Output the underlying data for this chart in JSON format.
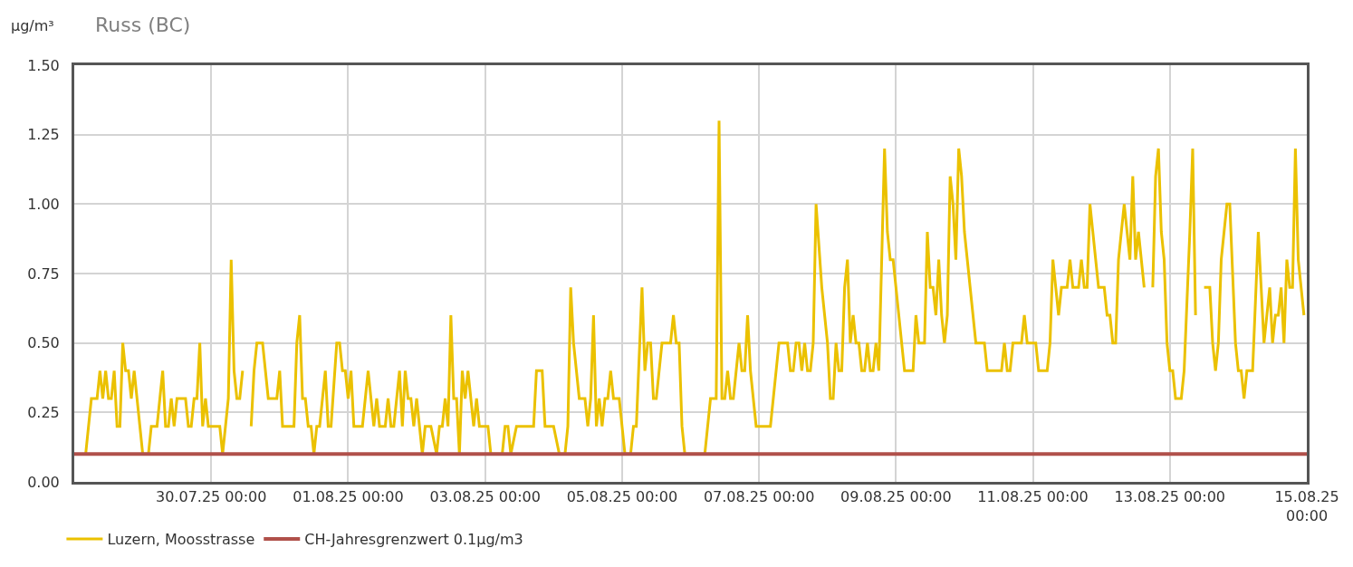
{
  "chart_data": {
    "type": "line",
    "title": "Russ (BC)",
    "ylabel": "µg/m³",
    "xlim": [
      "--07-28T00:00",
      "--08-15T00:00"
    ],
    "xticks": [
      {
        "value": "--07-30T00:00",
        "label": "30.07.25 00:00"
      },
      {
        "value": "--08-01T00:00",
        "label": "01.08.25 00:00"
      },
      {
        "value": "--08-03T00:00",
        "label": "03.08.25 00:00"
      },
      {
        "value": "--08-05T00:00",
        "label": "05.08.25 00:00"
      },
      {
        "value": "--08-07T00:00",
        "label": "07.08.25 00:00"
      },
      {
        "value": "--08-09T00:00",
        "label": "09.08.25 00:00"
      },
      {
        "value": "--08-11T00:00",
        "label": "11.08.25 00:00"
      },
      {
        "value": "--08-13T00:00",
        "label": "13.08.25 00:00"
      },
      {
        "value": "--08-15T00:00",
        "label": "15.08.25 00:00"
      }
    ],
    "ylim": [
      0,
      1.5
    ],
    "yticks": [
      {
        "value": 0,
        "label": "0.00"
      },
      {
        "value": 0.25,
        "label": "0.25"
      },
      {
        "value": 0.5,
        "label": "0.50"
      },
      {
        "value": 0.75,
        "label": "0.75"
      },
      {
        "value": 1,
        "label": "1.00"
      },
      {
        "value": 1.25,
        "label": "1.25"
      },
      {
        "value": 1.5,
        "label": "1.50"
      }
    ],
    "grid": true,
    "legend": "bottom left",
    "marker": "none",
    "line_style": "solid",
    "ref_lines": [
      {
        "axis": "y",
        "value": 0.1,
        "label": "CH-Jahresgrenzwert 0.1µg/m3",
        "color": "#b0504a",
        "line_style": "solid"
      }
    ],
    "series": [
      {
        "name": "Luzern, Moosstrasse",
        "color": "#ebc100",
        "x": [
          "--07-28T04:00",
          "--07-28T06:00",
          "--07-28T08:00",
          "--07-28T09:00",
          "--07-28T10:00",
          "--07-28T11:00",
          "--07-28T12:00",
          "--07-28T13:00",
          "--07-28T14:00",
          "--07-28T15:00",
          "--07-28T16:00",
          "--07-28T17:00",
          "--07-28T18:00",
          "--07-28T19:00",
          "--07-28T20:00",
          "--07-28T21:00",
          "--07-29T00:00",
          "--07-29T02:00",
          "--07-29T03:00",
          "--07-29T05:00",
          "--07-29T07:00",
          "--07-29T08:00",
          "--07-29T09:00",
          "--07-29T10:00",
          "--07-29T11:00",
          "--07-29T12:00",
          "--07-29T15:00",
          "--07-29T16:00",
          "--07-29T17:00",
          "--07-29T18:00",
          "--07-29T19:00",
          "--07-29T20:00",
          "--07-29T21:00",
          "--07-29T22:00",
          "--07-29T23:00",
          "--07-30T03:00",
          "--07-30T04:00",
          "--07-30T06:00",
          "--07-30T07:00",
          "--07-30T08:00",
          "--07-30T09:00",
          "--07-30T10:00",
          "--07-30T11:00",
          "--07-30T12:00",
          "--07-30T14:00",
          "--07-30T15:00",
          "--07-30T16:00",
          "--07-30T18:00",
          "--07-30T20:00",
          "--07-30T23:00",
          "--07-31T00:00",
          "--07-31T01:00",
          "--07-31T05:00",
          "--07-31T06:00",
          "--07-31T07:00",
          "--07-31T08:00",
          "--07-31T09:00",
          "--07-31T10:00",
          "--07-31T11:00",
          "--07-31T12:00",
          "--07-31T13:00",
          "--07-31T14:00",
          "--07-31T16:00",
          "--07-31T17:00",
          "--07-31T18:00",
          "--07-31T20:00",
          "--07-31T21:00",
          "--07-31T22:00",
          "--07-31T23:00",
          "--08-01T00:00",
          "--08-01T01:00",
          "--08-01T02:00",
          "--08-01T05:00",
          "--08-01T07:00",
          "--08-01T09:00",
          "--08-01T10:00",
          "--08-01T11:00",
          "--08-01T13:00",
          "--08-01T14:00",
          "--08-01T15:00",
          "--08-01T16:00",
          "--08-01T18:00",
          "--08-01T19:00",
          "--08-01T20:00",
          "--08-01T21:00",
          "--08-01T22:00",
          "--08-01T23:00",
          "--08-02T00:00",
          "--08-02T01:00",
          "--08-02T02:00",
          "--08-02T03:00",
          "--08-02T05:00",
          "--08-02T07:00",
          "--08-02T08:00",
          "--08-02T09:00",
          "--08-02T10:00",
          "--08-02T11:00",
          "--08-02T12:00",
          "--08-02T13:00",
          "--08-02T14:00",
          "--08-02T15:00",
          "--08-02T16:00",
          "--08-02T17:00",
          "--08-02T18:00",
          "--08-02T19:00",
          "--08-02T20:00",
          "--08-02T21:00",
          "--08-02T22:00",
          "--08-03T01:00",
          "--08-03T02:00",
          "--08-03T06:00",
          "--08-03T07:00",
          "--08-03T08:00",
          "--08-03T09:00",
          "--08-03T11:00",
          "--08-03T17:00",
          "--08-03T18:00",
          "--08-03T20:00",
          "--08-03T21:00",
          "--08-04T00:00",
          "--08-04T02:00",
          "--08-04T04:00",
          "--08-04T05:00",
          "--08-04T06:00",
          "--08-04T07:00",
          "--08-04T09:00",
          "--08-04T11:00",
          "--08-04T12:00",
          "--08-04T13:00",
          "--08-04T14:00",
          "--08-04T15:00",
          "--08-04T16:00",
          "--08-04T17:00",
          "--08-04T18:00",
          "--08-04T19:00",
          "--08-04T20:00",
          "--08-04T21:00",
          "--08-04T23:00",
          "--08-05T01:00",
          "--08-05T03:00",
          "--08-05T04:00",
          "--08-05T05:00",
          "--08-05T07:00",
          "--08-05T08:00",
          "--08-05T09:00",
          "--08-05T10:00",
          "--08-05T11:00",
          "--08-05T12:00",
          "--08-05T14:00",
          "--08-05T17:00",
          "--08-05T18:00",
          "--08-05T19:00",
          "--08-05T20:00",
          "--08-05T21:00",
          "--08-05T22:00",
          "--08-06T05:00",
          "--08-06T07:00",
          "--08-06T09:00",
          "--08-06T10:00",
          "--08-06T11:00",
          "--08-06T12:00",
          "--08-06T13:00",
          "--08-06T14:00",
          "--08-06T15:00",
          "--08-06T17:00",
          "--08-06T18:00",
          "--08-06T19:00",
          "--08-06T20:00",
          "--08-06T21:00",
          "--08-06T23:00",
          "--08-07T04:00",
          "--08-07T07:00",
          "--08-07T10:00",
          "--08-07T11:00",
          "--08-07T12:00",
          "--08-07T13:00",
          "--08-07T14:00",
          "--08-07T15:00",
          "--08-07T16:00",
          "--08-07T17:00",
          "--08-07T18:00",
          "--08-07T19:00",
          "--08-07T20:00",
          "--08-07T22:00",
          "--08-08T00:00",
          "--08-08T01:00",
          "--08-08T02:00",
          "--08-08T03:00",
          "--08-08T04:00",
          "--08-08T05:00",
          "--08-08T06:00",
          "--08-08T07:00",
          "--08-08T08:00",
          "--08-08T09:00",
          "--08-08T10:00",
          "--08-08T11:00",
          "--08-08T12:00",
          "--08-08T13:00",
          "--08-08T14:00",
          "--08-08T15:00",
          "--08-08T16:00",
          "--08-08T17:00",
          "--08-08T18:00",
          "--08-08T19:00",
          "--08-08T20:00",
          "--08-08T21:00",
          "--08-08T22:00",
          "--08-08T23:00",
          "--08-09T03:00",
          "--08-09T06:00",
          "--08-09T07:00",
          "--08-09T08:00",
          "--08-09T10:00",
          "--08-09T11:00",
          "--08-09T12:00",
          "--08-09T13:00",
          "--08-09T14:00",
          "--08-09T15:00",
          "--08-09T16:00",
          "--08-09T17:00",
          "--08-09T18:00",
          "--08-09T19:00",
          "--08-09T20:00",
          "--08-09T21:00",
          "--08-09T22:00",
          "--08-09T23:00",
          "--08-10T00:00",
          "--08-10T04:00",
          "--08-10T07:00",
          "--08-10T08:00",
          "--08-10T13:00",
          "--08-10T14:00",
          "--08-10T15:00",
          "--08-10T16:00",
          "--08-10T17:00",
          "--08-10T20:00",
          "--08-10T21:00",
          "--08-10T22:00",
          "--08-11T01:00",
          "--08-11T02:00",
          "--08-11T05:00",
          "--08-11T06:00",
          "--08-11T07:00",
          "--08-11T08:00",
          "--08-11T09:00",
          "--08-11T10:00",
          "--08-11T12:00",
          "--08-11T13:00",
          "--08-11T14:00",
          "--08-11T16:00",
          "--08-11T17:00",
          "--08-11T18:00",
          "--08-11T19:00",
          "--08-11T20:00",
          "--08-11T23:00",
          "--08-12T01:00",
          "--08-12T02:00",
          "--08-12T03:00",
          "--08-12T04:00",
          "--08-12T05:00",
          "--08-12T06:00",
          "--08-12T08:00",
          "--08-12T09:00",
          "--08-12T10:00",
          "--08-12T11:00",
          "--08-12T12:00",
          "--08-12T13:00",
          "--08-12T15:00",
          "--08-12T16:00",
          "--08-12T18:00",
          "--08-12T19:00",
          "--08-12T20:00",
          "--08-12T21:00",
          "--08-12T22:00",
          "--08-12T23:00",
          "--08-13T00:00",
          "--08-13T01:00",
          "--08-13T02:00",
          "--08-13T04:00",
          "--08-13T05:00",
          "--08-13T07:00",
          "--08-13T08:00",
          "--08-13T09:00",
          "--08-13T10:00",
          "--08-13T12:00",
          "--08-13T14:00",
          "--08-13T15:00",
          "--08-13T16:00",
          "--08-13T17:00",
          "--08-13T18:00",
          "--08-13T20:00",
          "--08-13T21:00",
          "--08-13T23:00",
          "--08-14T00:00",
          "--08-14T01:00",
          "--08-14T02:00",
          "--08-14T03:00",
          "--08-14T05:00",
          "--08-14T07:00",
          "--08-14T08:00",
          "--08-14T09:00",
          "--08-14T11:00",
          "--08-14T12:00",
          "--08-14T13:00",
          "--08-14T14:00",
          "--08-14T15:00",
          "--08-14T16:00",
          "--08-14T17:00",
          "--08-14T18:00",
          "--08-14T19:00",
          "--08-14T20:00",
          "--08-14T21:00",
          "--08-14T23:00"
        ],
        "values": [
          0.1,
          0.3,
          0.3,
          0.4,
          0.3,
          0.4,
          0.3,
          0.3,
          0.4,
          0.2,
          0.2,
          0.5,
          0.4,
          0.4,
          0.3,
          0.4,
          0.1,
          0.1,
          0.2,
          0.2,
          0.4,
          0.2,
          0.2,
          0.3,
          0.2,
          0.3,
          0.3,
          0.2,
          0.2,
          0.3,
          0.3,
          0.5,
          0.2,
          0.3,
          0.2,
          0.2,
          0.1,
          0.3,
          0.8,
          0.4,
          0.3,
          0.3,
          0.4,
          null,
          0.2,
          0.4,
          0.5,
          0.5,
          0.3,
          0.3,
          0.4,
          0.2,
          0.2,
          0.5,
          0.6,
          0.3,
          0.3,
          0.2,
          0.2,
          0.1,
          0.2,
          0.2,
          0.4,
          0.2,
          0.2,
          0.5,
          0.5,
          0.4,
          0.4,
          0.3,
          0.4,
          0.2,
          0.2,
          0.4,
          0.2,
          0.3,
          0.2,
          0.2,
          0.3,
          0.2,
          0.2,
          0.4,
          0.2,
          0.4,
          0.3,
          0.3,
          0.2,
          0.3,
          0.2,
          0.1,
          0.2,
          0.2,
          0.1,
          0.2,
          0.2,
          0.3,
          0.2,
          0.6,
          0.3,
          0.3,
          0.1,
          0.4,
          0.3,
          0.4,
          0.3,
          0.2,
          0.3,
          0.2,
          0.2,
          0.1,
          0.1,
          0.2,
          0.2,
          0.1,
          0.2,
          0.2,
          0.4,
          0.4,
          0.2,
          0.2,
          0.1,
          0.1,
          0.2,
          0.7,
          0.5,
          0.3,
          0.3,
          0.2,
          0.3,
          0.6,
          0.2,
          0.3,
          0.2,
          0.3,
          0.3,
          0.4,
          0.3,
          0.3,
          0.1,
          0.1,
          0.2,
          0.2,
          0.7,
          0.4,
          0.5,
          0.5,
          0.3,
          0.3,
          0.5,
          0.5,
          0.6,
          0.5,
          0.5,
          0.2,
          0.1,
          0.1,
          0.3,
          0.3,
          1.3,
          0.3,
          0.3,
          0.4,
          0.3,
          0.3,
          0.5,
          0.4,
          0.4,
          0.6,
          0.4,
          0.2,
          0.2,
          0.5,
          0.5,
          0.4,
          0.4,
          0.5,
          0.5,
          0.4,
          0.5,
          0.4,
          0.4,
          0.5,
          1.0,
          0.7,
          0.5,
          0.3,
          0.3,
          0.5,
          0.4,
          0.4,
          0.7,
          0.8,
          0.5,
          0.6,
          0.5,
          0.5,
          0.4,
          0.4,
          0.5,
          0.4,
          0.4,
          0.5,
          0.4,
          0.8,
          1.2,
          0.9,
          0.8,
          0.8,
          0.4,
          0.4,
          0.6,
          0.5,
          0.5,
          0.9,
          0.7,
          0.7,
          0.6,
          0.8,
          0.6,
          0.5,
          0.6,
          1.1,
          1.0,
          0.8,
          1.2,
          1.1,
          0.9,
          0.5,
          0.5,
          0.4,
          0.4,
          0.5,
          0.4,
          0.4,
          0.5,
          0.5,
          0.6,
          0.5,
          0.5,
          0.4,
          0.4,
          0.5,
          0.8,
          0.7,
          0.6,
          0.7,
          0.7,
          0.8,
          0.7,
          0.7,
          0.8,
          0.7,
          0.7,
          1.0,
          0.7,
          0.7,
          0.6,
          0.6,
          0.5,
          0.5,
          0.8,
          1.0,
          0.9,
          0.8,
          1.1,
          0.8,
          0.9,
          0.7,
          null,
          0.7,
          1.1,
          1.2,
          0.9,
          0.8,
          0.5,
          0.4,
          0.4,
          0.3,
          0.3,
          0.4,
          0.9,
          1.2,
          0.6,
          null,
          0.7,
          0.7,
          0.5,
          0.4,
          0.5,
          0.8,
          1.0,
          1.0,
          0.5,
          0.4,
          0.4,
          0.3,
          0.4,
          0.4,
          0.9,
          0.7,
          0.5,
          0.7,
          0.5,
          0.6,
          0.6,
          0.7,
          0.5,
          0.8,
          0.7,
          0.7,
          1.2,
          0.8,
          0.6
        ]
      }
    ]
  }
}
